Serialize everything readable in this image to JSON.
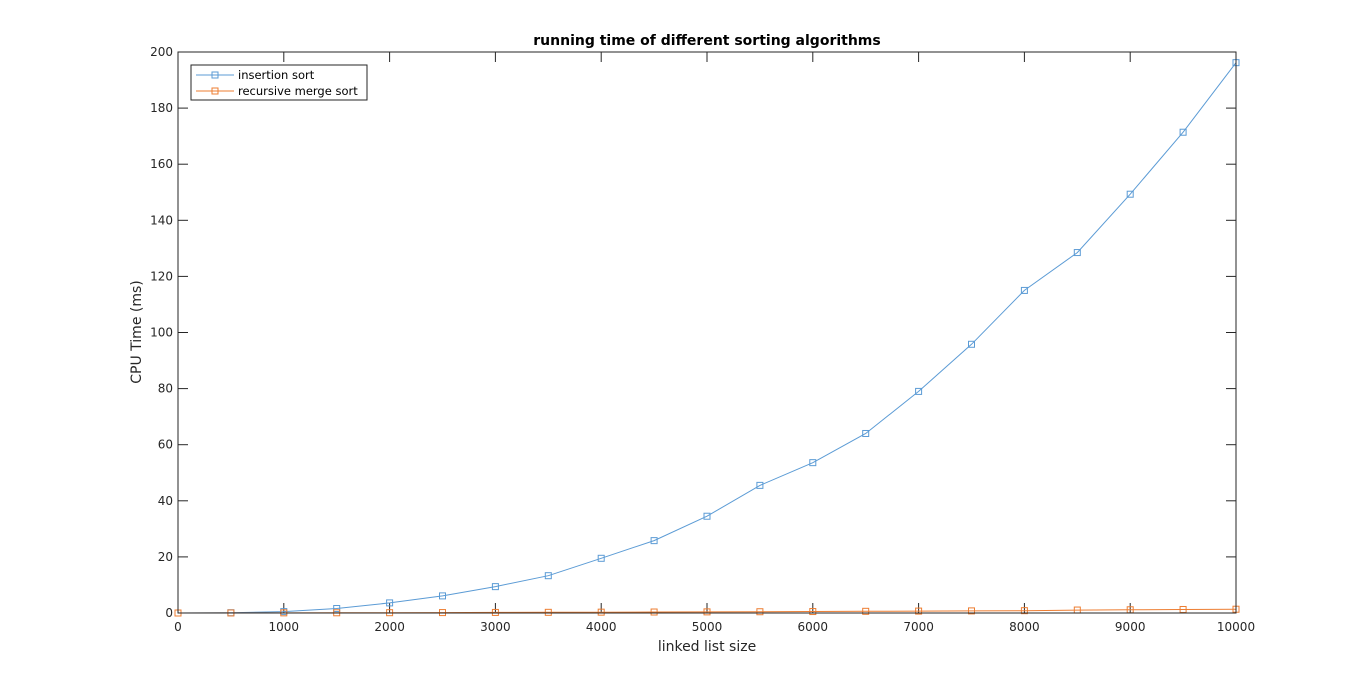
{
  "chart_data": {
    "type": "line",
    "title": "running time of different sorting algorithms",
    "xlabel": "linked list size",
    "ylabel": "CPU Time (ms)",
    "xlim": [
      0,
      10000
    ],
    "ylim": [
      0,
      200
    ],
    "xticks": [
      0,
      1000,
      2000,
      3000,
      4000,
      5000,
      6000,
      7000,
      8000,
      9000,
      10000
    ],
    "yticks": [
      0,
      20,
      40,
      60,
      80,
      100,
      120,
      140,
      160,
      180,
      200
    ],
    "grid": false,
    "legend_position": "top-left",
    "x": [
      0,
      500,
      1000,
      1500,
      2000,
      2500,
      3000,
      3500,
      4000,
      4500,
      5000,
      5500,
      6000,
      6500,
      7000,
      7500,
      8000,
      8500,
      9000,
      9500,
      10000
    ],
    "series": [
      {
        "name": "insertion sort",
        "color": "#5b9bd5",
        "marker": "square",
        "values": [
          0,
          0.1,
          0.5,
          1.6,
          3.6,
          6.1,
          9.4,
          13.3,
          19.5,
          25.8,
          34.5,
          45.5,
          53.6,
          64.0,
          79.0,
          95.8,
          115.0,
          128.5,
          149.3,
          171.4,
          196.2
        ]
      },
      {
        "name": "recursive merge sort",
        "color": "#ed7d31",
        "marker": "square",
        "values": [
          0,
          0.02,
          0.05,
          0.08,
          0.11,
          0.15,
          0.2,
          0.24,
          0.3,
          0.35,
          0.4,
          0.45,
          0.52,
          0.6,
          0.68,
          0.75,
          0.83,
          1.05,
          1.15,
          1.25,
          1.35
        ]
      }
    ]
  }
}
